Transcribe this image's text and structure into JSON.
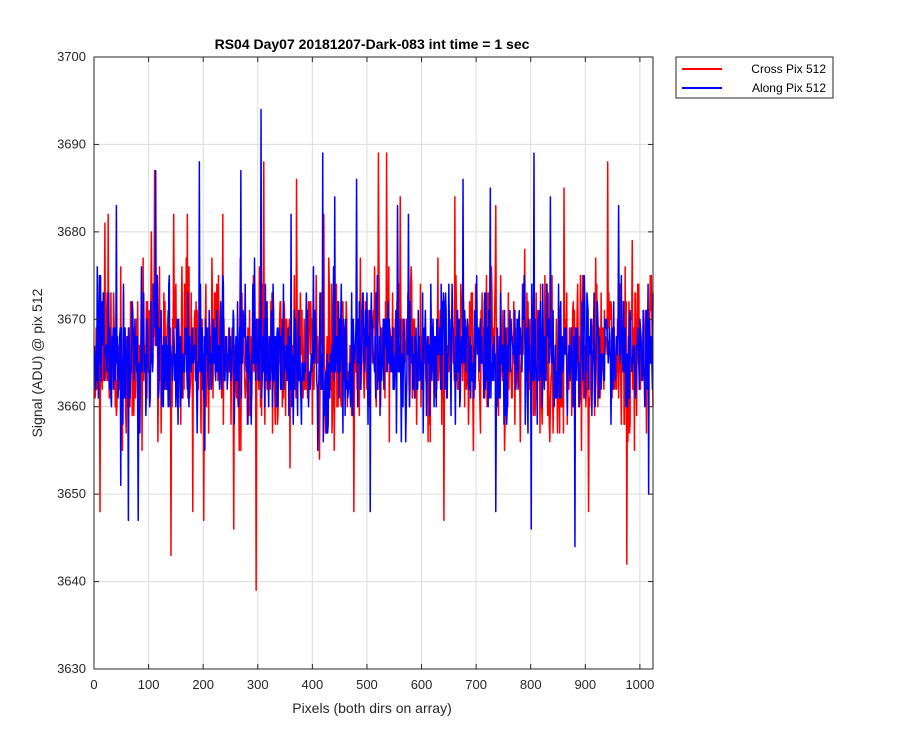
{
  "chart_data": {
    "type": "line",
    "title": "RS04 Day07 20181207-Dark-083 int time = 1 sec",
    "xlabel": "Pixels (both dirs on array)",
    "ylabel": "Signal (ADU) @ pix 512",
    "xlim": [
      0,
      1024
    ],
    "ylim": [
      3630,
      3700
    ],
    "xticks": [
      0,
      100,
      200,
      300,
      400,
      500,
      600,
      700,
      800,
      900,
      1000
    ],
    "yticks": [
      3630,
      3640,
      3650,
      3660,
      3670,
      3680,
      3690,
      3700
    ],
    "grid": true,
    "legend_position": "outside-top-right",
    "baseline": 3666,
    "series": [
      {
        "name": "Cross Pix 512",
        "color": "#ff0000",
        "noise_amplitude": 7,
        "seed": 17,
        "spikes": [
          {
            "x": 10,
            "y": 3648
          },
          {
            "x": 19,
            "y": 3681
          },
          {
            "x": 25,
            "y": 3682
          },
          {
            "x": 104,
            "y": 3680
          },
          {
            "x": 110,
            "y": 3687
          },
          {
            "x": 140,
            "y": 3643
          },
          {
            "x": 145,
            "y": 3682
          },
          {
            "x": 170,
            "y": 3682
          },
          {
            "x": 180,
            "y": 3648
          },
          {
            "x": 200,
            "y": 3647
          },
          {
            "x": 235,
            "y": 3682
          },
          {
            "x": 255,
            "y": 3646
          },
          {
            "x": 296,
            "y": 3639
          },
          {
            "x": 310,
            "y": 3688
          },
          {
            "x": 370,
            "y": 3686
          },
          {
            "x": 420,
            "y": 3682
          },
          {
            "x": 475,
            "y": 3648
          },
          {
            "x": 520,
            "y": 3689
          },
          {
            "x": 535,
            "y": 3689
          },
          {
            "x": 560,
            "y": 3684
          },
          {
            "x": 640,
            "y": 3647
          },
          {
            "x": 660,
            "y": 3684
          },
          {
            "x": 735,
            "y": 3683
          },
          {
            "x": 860,
            "y": 3685
          },
          {
            "x": 905,
            "y": 3648
          },
          {
            "x": 940,
            "y": 3688
          },
          {
            "x": 975,
            "y": 3642
          }
        ]
      },
      {
        "name": "Along Pix 512",
        "color": "#0000ff",
        "noise_amplitude": 6,
        "seed": 91,
        "spikes": [
          {
            "x": 5,
            "y": 3676
          },
          {
            "x": 40,
            "y": 3683
          },
          {
            "x": 48,
            "y": 3651
          },
          {
            "x": 62,
            "y": 3647
          },
          {
            "x": 80,
            "y": 3647
          },
          {
            "x": 112,
            "y": 3687
          },
          {
            "x": 192,
            "y": 3688
          },
          {
            "x": 268,
            "y": 3687
          },
          {
            "x": 305,
            "y": 3694
          },
          {
            "x": 360,
            "y": 3682
          },
          {
            "x": 418,
            "y": 3689
          },
          {
            "x": 440,
            "y": 3684
          },
          {
            "x": 480,
            "y": 3686
          },
          {
            "x": 505,
            "y": 3648
          },
          {
            "x": 555,
            "y": 3683
          },
          {
            "x": 575,
            "y": 3682
          },
          {
            "x": 675,
            "y": 3686
          },
          {
            "x": 725,
            "y": 3685
          },
          {
            "x": 735,
            "y": 3648
          },
          {
            "x": 800,
            "y": 3646
          },
          {
            "x": 805,
            "y": 3689
          },
          {
            "x": 835,
            "y": 3684
          },
          {
            "x": 880,
            "y": 3644
          },
          {
            "x": 960,
            "y": 3683
          },
          {
            "x": 1015,
            "y": 3650
          }
        ]
      }
    ]
  }
}
